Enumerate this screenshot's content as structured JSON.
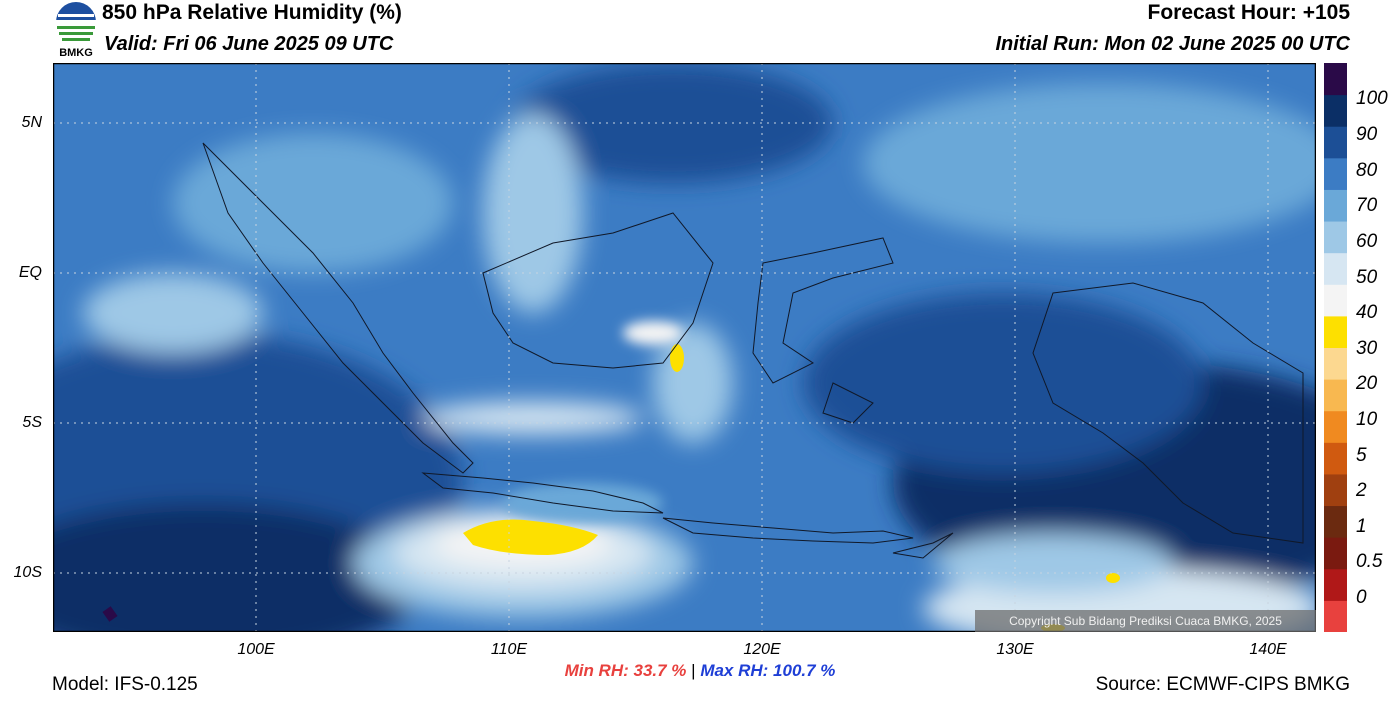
{
  "header": {
    "title": "850 hPa Relative Humidity (%)",
    "valid": "Valid: Fri 06 June 2025 09 UTC",
    "forecast_hour": "Forecast Hour: +105",
    "initial_run": "Initial Run: Mon 02 June 2025 00 UTC",
    "logo_text": "BMKG"
  },
  "map": {
    "lat_labels": [
      "5N",
      "EQ",
      "5S",
      "10S"
    ],
    "lon_labels": [
      "100E",
      "110E",
      "120E",
      "130E",
      "140E"
    ],
    "copyright": "Copyright Sub Bidang Prediksi Cuaca BMKG, 2025"
  },
  "colorbar": {
    "labels": [
      "100",
      "90",
      "80",
      "70",
      "60",
      "50",
      "40",
      "30",
      "20",
      "10",
      "5",
      "2",
      "1",
      "0.5",
      "0"
    ],
    "colors": [
      "#e8413e",
      "#b01818",
      "#7a1a10",
      "#6b2a10",
      "#a04010",
      "#d05a10",
      "#f08a20",
      "#f8b850",
      "#fcd890",
      "#fde000",
      "#f4f4f4",
      "#d6e6f2",
      "#9ec8e6",
      "#6aa8d8",
      "#3c7cc4",
      "#1c4f96",
      "#0b2f66",
      "#2a0a48"
    ]
  },
  "footer": {
    "min_rh": "Min RH:  33.7 %",
    "max_rh": "Max RH: 100.7 %",
    "separator": "|",
    "model": "Model: IFS-0.125",
    "source": "Source: ECMWF-CIPS BMKG"
  }
}
